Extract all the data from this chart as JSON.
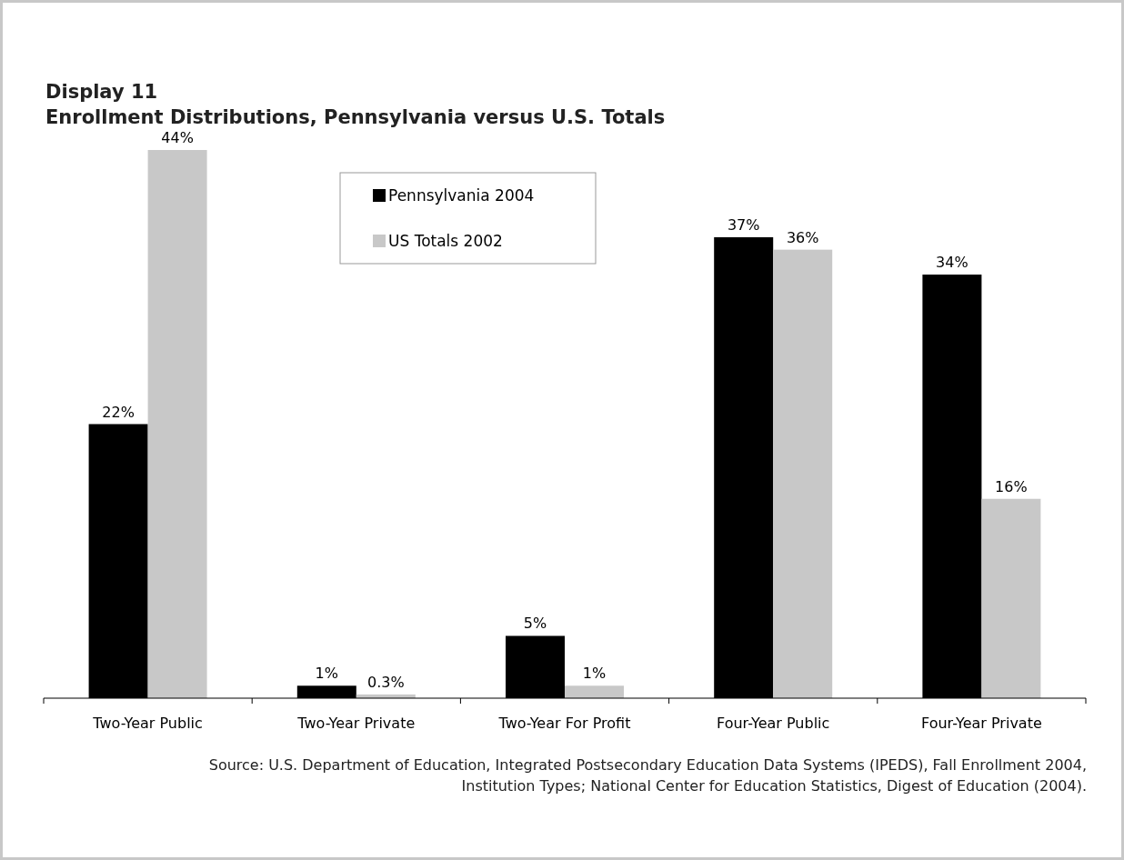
{
  "chart_data": {
    "type": "bar",
    "title": "Display 11",
    "subtitle": "Enrollment Distributions, Pennsylvania versus U.S. Totals",
    "categories": [
      "Two-Year Public",
      "Two-Year Private",
      "Two-Year For Profit",
      "Four-Year Public",
      "Four-Year Private"
    ],
    "ylim": [
      0,
      44
    ],
    "series": [
      {
        "name": "Pennsylvania 2004",
        "color": "#000000",
        "values": [
          22,
          1,
          5,
          37,
          34
        ],
        "value_labels": [
          "22%",
          "1%",
          "5%",
          "37%",
          "34%"
        ]
      },
      {
        "name": "US Totals 2002",
        "color": "#c8c8c8",
        "values": [
          44,
          0.3,
          1,
          36,
          16
        ],
        "value_labels": [
          "44%",
          "0.3%",
          "1%",
          "36%",
          "16%"
        ]
      }
    ],
    "legend": "top",
    "annotations": [
      "Source: U.S. Department of Education, Integrated Postsecondary Education Data Systems (IPEDS), Fall Enrollment 2004, Institution Types; National Center for Education Statistics, Digest of Education (2004)."
    ]
  }
}
